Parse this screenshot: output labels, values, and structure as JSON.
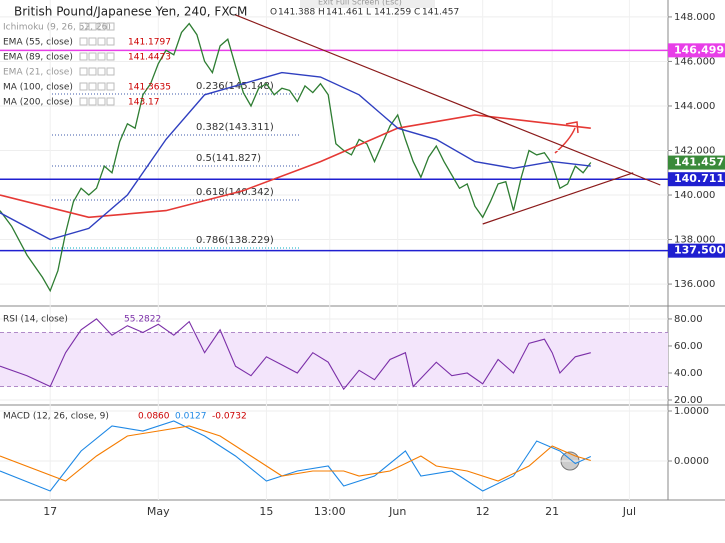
{
  "chart_data": [
    {
      "type": "line",
      "title": "British Pound/Japanese Yen, 240, FXCM",
      "quote": [
        "O",
        "141.388",
        "H",
        "141.461",
        "L",
        "141.259",
        "C",
        "141.457"
      ],
      "overlay_text": "Exit Full Screen (Esc)",
      "indicators": [
        {
          "label": "Ichimoku (9, 26, 52, 26)"
        },
        {
          "label": "EMA (55, close)",
          "value": "141.1797"
        },
        {
          "label": "EMA (89, close)",
          "value": "141.4473"
        },
        {
          "label": "EMA (21, close)"
        },
        {
          "label": "MA (100, close)",
          "value": "141.3635"
        },
        {
          "label": "MA (200, close)",
          "value": "143.17"
        }
      ],
      "fib_labels": [
        "0.236(145.148)",
        "0.382(143.311)",
        "0.5(141.827)",
        "0.618(140.342)",
        "0.786(138.229)"
      ],
      "xlim": [
        -6.5,
        80
      ],
      "xticks": [
        {
          "value": 0,
          "label": "17"
        },
        {
          "value": 14,
          "label": "May"
        },
        {
          "value": 28,
          "label": "15"
        },
        {
          "value": 36.2,
          "label": "13:00"
        },
        {
          "value": 45,
          "label": "Jun"
        },
        {
          "value": 56,
          "label": "12"
        },
        {
          "value": 65,
          "label": "21"
        },
        {
          "value": 75,
          "label": "Jul"
        }
      ],
      "ylim": [
        135.06,
        148.76
      ],
      "yticks": [
        {
          "value": 136,
          "label": "136.000"
        },
        {
          "value": 138,
          "label": "138.000"
        },
        {
          "value": 140,
          "label": "140.000"
        },
        {
          "value": 142,
          "label": "142.000"
        },
        {
          "value": 144,
          "label": "144.000"
        },
        {
          "value": 146,
          "label": "146.000"
        },
        {
          "value": 148,
          "label": "148.000"
        }
      ],
      "levels": [
        {
          "value": 146.499,
          "label": "146.499",
          "color": "#e83ee8"
        },
        {
          "value": 140.711,
          "label": "140.711",
          "color": "#1f1fd0"
        },
        {
          "value": 137.5,
          "label": "137.500",
          "color": "#1f1fd0"
        }
      ],
      "last_price": {
        "value": 141.457,
        "label": "141.457",
        "color": "#3a8a3a"
      },
      "series": [
        {
          "color": "#2e7d32",
          "width": 1.3,
          "x": [
            -6.5,
            -5,
            -3,
            -1,
            0,
            1,
            2,
            3,
            4,
            5,
            6,
            7,
            8,
            9,
            10,
            11,
            12,
            13,
            14,
            15,
            16,
            17,
            18,
            19,
            20,
            21,
            22,
            23,
            24,
            25,
            26,
            27,
            28,
            29,
            30,
            31,
            32,
            33,
            34,
            35,
            36,
            37,
            38,
            39,
            40,
            41,
            42,
            43,
            44,
            45,
            46,
            47,
            48,
            49,
            50,
            51,
            52,
            53,
            54,
            55,
            56,
            57,
            58,
            59,
            60,
            61,
            62,
            63,
            64,
            65,
            66,
            67,
            68,
            69,
            70
          ],
          "values": [
            139.3,
            138.6,
            137.3,
            136.3,
            135.7,
            136.6,
            138.3,
            139.7,
            140.3,
            140.0,
            140.3,
            141.3,
            141.0,
            142.4,
            143.2,
            143.0,
            144.5,
            145.0,
            145.9,
            146.5,
            146.3,
            147.3,
            147.7,
            147.2,
            146.0,
            145.5,
            146.7,
            147.0,
            145.8,
            144.6,
            144.0,
            144.8,
            145.0,
            144.5,
            144.8,
            144.7,
            144.2,
            144.9,
            144.6,
            145.0,
            144.5,
            142.3,
            142.0,
            141.8,
            142.5,
            142.3,
            141.5,
            142.3,
            143.1,
            143.6,
            142.5,
            141.5,
            140.8,
            141.7,
            142.2,
            141.5,
            140.9,
            140.3,
            140.5,
            139.5,
            139.0,
            139.7,
            140.5,
            140.6,
            139.3,
            140.8,
            142.0,
            141.8,
            141.9,
            141.4,
            140.3,
            140.5,
            141.3,
            141.0,
            141.46
          ]
        },
        {
          "color": "#e53935",
          "width": 1.6,
          "x": [
            -6.5,
            5,
            15,
            25,
            35,
            45,
            55,
            65,
            70
          ],
          "values": [
            140.0,
            139.0,
            139.3,
            140.2,
            141.5,
            143.0,
            143.6,
            143.2,
            143.0
          ]
        },
        {
          "color": "#2f3fc0",
          "width": 1.4,
          "x": [
            -6.5,
            0,
            5,
            10,
            15,
            20,
            30,
            35,
            40,
            45,
            50,
            55,
            60,
            65,
            70
          ],
          "values": [
            139.2,
            138.0,
            138.5,
            140.0,
            142.5,
            144.5,
            145.5,
            145.3,
            144.5,
            143.0,
            142.5,
            141.5,
            141.2,
            141.5,
            141.3
          ]
        },
        {
          "color": "#8b1a1a",
          "width": 1.2,
          "x": [
            23.9,
            79
          ],
          "values": [
            148.1,
            140.45
          ]
        },
        {
          "color": "#8b1a1a",
          "width": 1.2,
          "x": [
            56,
            75.5
          ],
          "values": [
            138.7,
            141.0
          ]
        }
      ]
    },
    {
      "type": "line",
      "label": "RSI (14, close)",
      "readout": "55.2822",
      "ylim": [
        16.3,
        88.1
      ],
      "band": [
        30,
        70
      ],
      "yticks": [
        {
          "value": 80,
          "label": "80.00"
        },
        {
          "value": 60,
          "label": "60.00"
        },
        {
          "value": 40,
          "label": "40.00"
        },
        {
          "value": 20,
          "label": "20.00"
        }
      ],
      "series": [
        {
          "color": "#7b2fa8",
          "width": 1.1,
          "x": [
            -6.5,
            -3,
            0,
            2,
            4,
            6,
            8,
            10,
            12,
            14,
            16,
            18,
            20,
            22,
            24,
            26,
            28,
            30,
            32,
            34,
            36,
            38,
            40,
            42,
            44,
            46,
            47,
            50,
            52,
            54,
            56,
            58,
            60,
            62,
            64,
            65,
            66,
            68,
            70
          ],
          "values": [
            45,
            38,
            30,
            55,
            72,
            80,
            68,
            75,
            70,
            76,
            68,
            78,
            55,
            72,
            45,
            38,
            52,
            46,
            40,
            55,
            48,
            28,
            42,
            35,
            50,
            55,
            30,
            48,
            38,
            40,
            32,
            50,
            40,
            62,
            65,
            55,
            40,
            52,
            55
          ]
        }
      ]
    },
    {
      "type": "line",
      "label": "MACD (12, 26, close, 9)",
      "readouts": [
        "0.0860",
        "0.0127",
        "-0.0732"
      ],
      "ylim": [
        -0.78,
        1.12
      ],
      "yticks": [
        {
          "value": 1,
          "label": "1.0000"
        },
        {
          "value": 0,
          "label": "0.0000"
        }
      ],
      "series": [
        {
          "color": "#1e88e5",
          "width": 1.1,
          "x": [
            -6.5,
            0,
            4,
            8,
            12,
            16,
            20,
            24,
            28,
            32,
            36,
            38,
            42,
            46,
            48,
            52,
            56,
            60,
            63,
            66,
            68,
            70
          ],
          "values": [
            -0.2,
            -0.6,
            0.2,
            0.7,
            0.6,
            0.8,
            0.5,
            0.1,
            -0.4,
            -0.2,
            -0.1,
            -0.5,
            -0.3,
            0.2,
            -0.3,
            -0.2,
            -0.6,
            -0.3,
            0.4,
            0.2,
            -0.05,
            0.09
          ]
        },
        {
          "color": "#f57c00",
          "width": 1.1,
          "x": [
            -6.5,
            2,
            6,
            10,
            14,
            18,
            22,
            26,
            30,
            34,
            38,
            40,
            44,
            48,
            50,
            54,
            58,
            62,
            65,
            68,
            70
          ],
          "values": [
            0.1,
            -0.4,
            0.1,
            0.5,
            0.6,
            0.7,
            0.5,
            0.1,
            -0.3,
            -0.2,
            -0.2,
            -0.3,
            -0.2,
            0.1,
            -0.1,
            -0.2,
            -0.4,
            -0.1,
            0.3,
            0.1,
            0.01
          ]
        }
      ]
    }
  ]
}
